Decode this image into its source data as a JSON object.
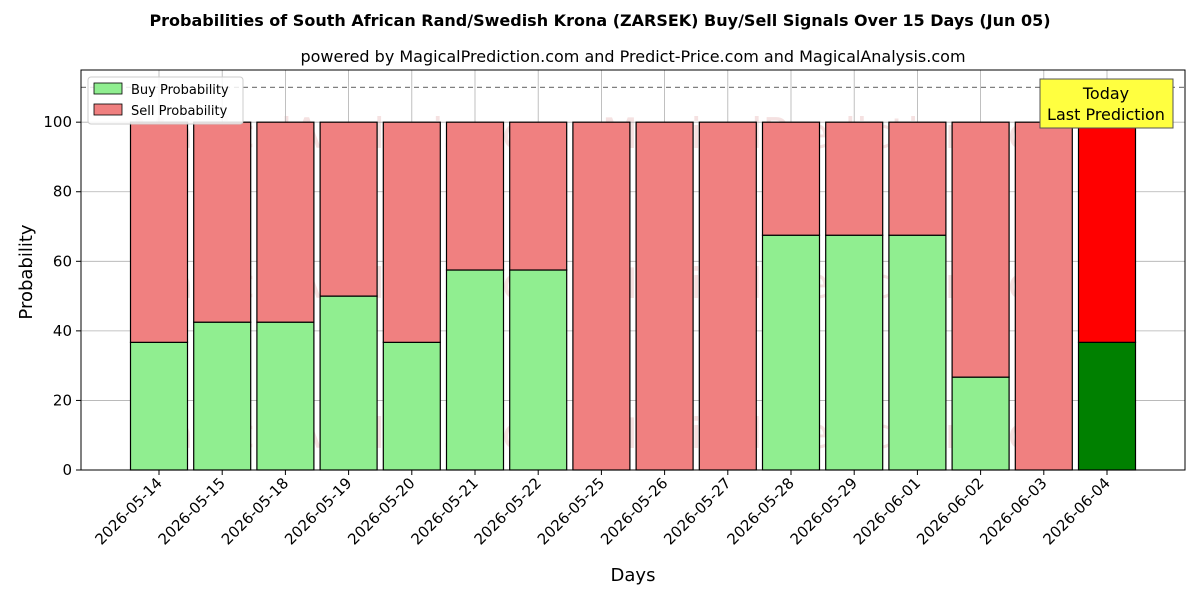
{
  "chart_data": {
    "type": "bar",
    "title": "Probabilities of South African Rand/Swedish Krona (ZARSEK) Buy/Sell Signals Over 15 Days (Jun 05)",
    "subtitle": "powered by MagicalPrediction.com and Predict-Price.com and MagicalAnalysis.com",
    "xlabel": "Days",
    "ylabel": "Probability",
    "ylim": [
      0,
      115
    ],
    "yticks": [
      0,
      20,
      40,
      60,
      80,
      100
    ],
    "categories": [
      "2026-05-14",
      "2026-05-15",
      "2026-05-18",
      "2026-05-19",
      "2026-05-20",
      "2026-05-21",
      "2026-05-22",
      "2026-05-25",
      "2026-05-26",
      "2026-05-27",
      "2026-05-28",
      "2026-05-29",
      "2026-06-01",
      "2026-06-02",
      "2026-06-03",
      "2026-06-04"
    ],
    "series": [
      {
        "name": "Buy Probability",
        "values": [
          36.7,
          42.5,
          42.5,
          50,
          36.7,
          57.5,
          57.5,
          0,
          0,
          0,
          67.5,
          67.5,
          67.5,
          26.7,
          0,
          36.7
        ]
      },
      {
        "name": "Sell Probability",
        "values": [
          63.3,
          57.5,
          57.5,
          50,
          63.3,
          42.5,
          42.5,
          100,
          100,
          100,
          32.5,
          32.5,
          32.5,
          73.3,
          100,
          63.3
        ]
      }
    ],
    "stacked": true,
    "reference_line": 110,
    "grid": true,
    "legend_position": "top-left",
    "colors": {
      "buy": "#90EE90",
      "sell": "#F08080",
      "today_buy": "#008000",
      "today_sell": "#FF0000",
      "today_box": "#FFFF40"
    },
    "annotation": {
      "line1": "Today",
      "line2": "Last Prediction"
    },
    "watermark": [
      "MagicalAnalysis.com",
      "MagicalPrediction.com"
    ]
  }
}
